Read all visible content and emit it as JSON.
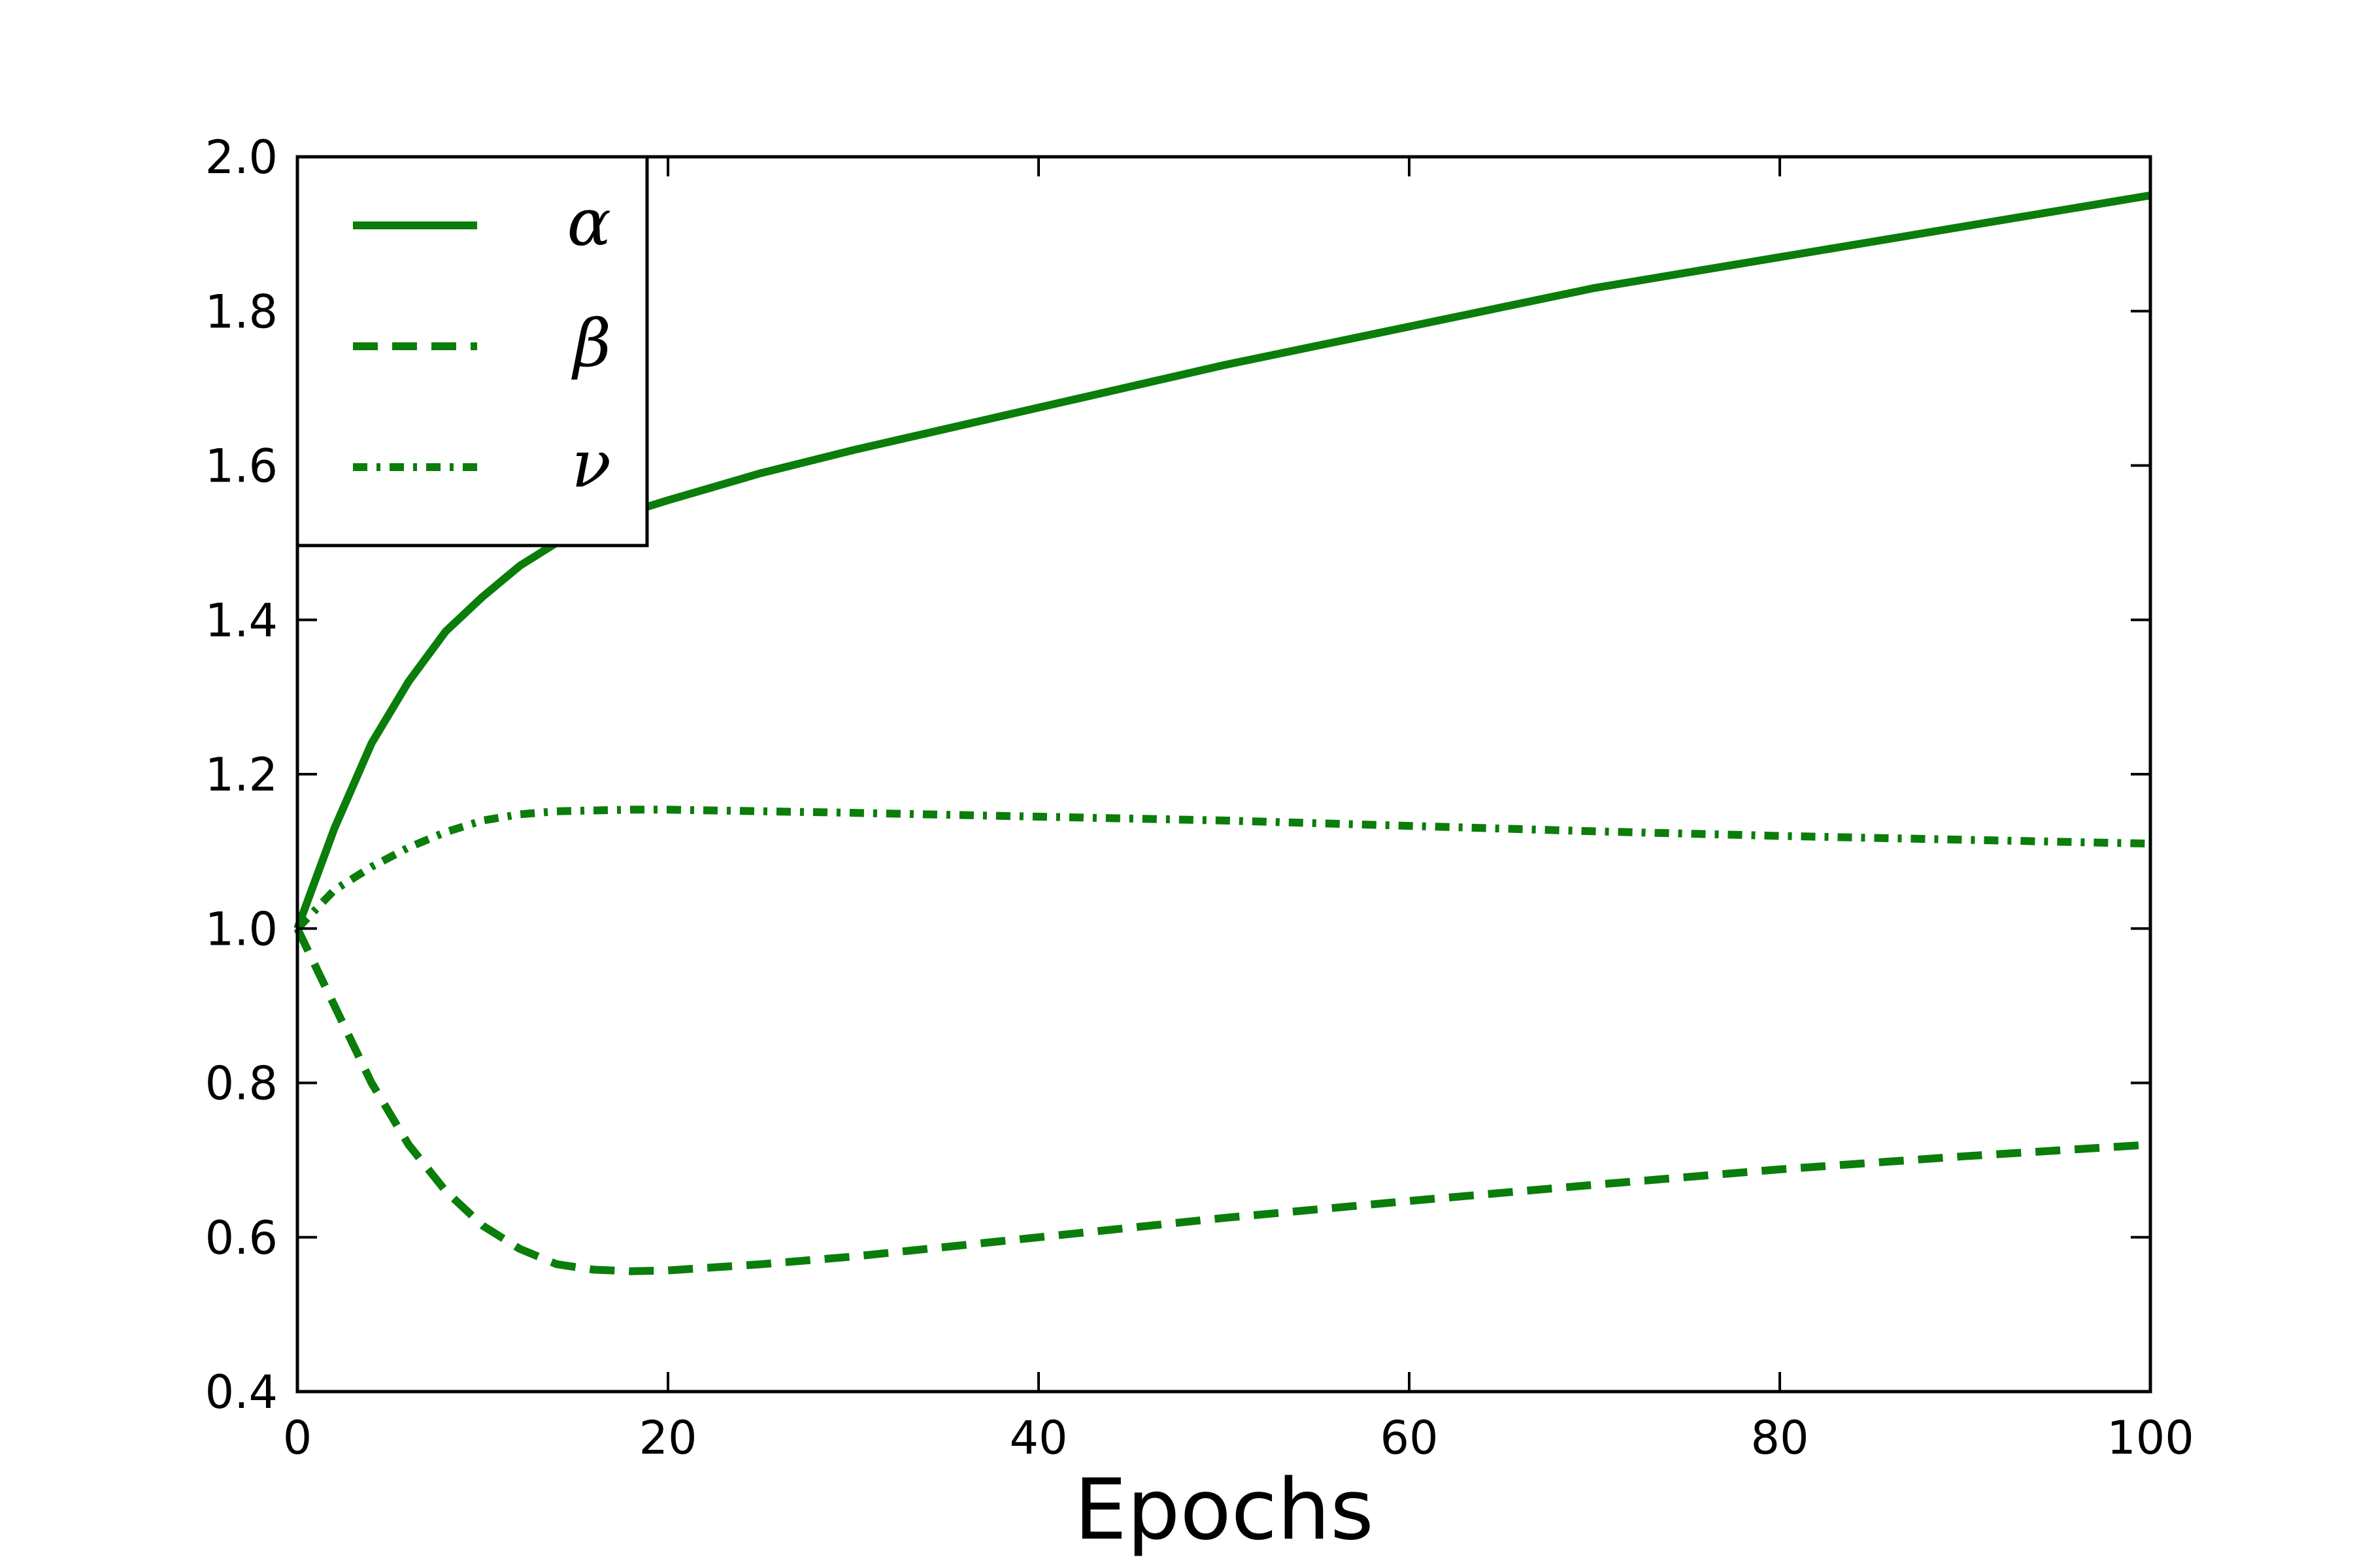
{
  "chart_data": {
    "type": "line",
    "title": "",
    "xlabel": "Epochs",
    "ylabel": "",
    "xlim": [
      0,
      100
    ],
    "ylim": [
      0.4,
      2.0
    ],
    "xticks": [
      0,
      20,
      40,
      60,
      80,
      100
    ],
    "yticks": [
      0.4,
      0.6,
      0.8,
      1.0,
      1.2,
      1.4,
      1.6,
      1.8,
      2.0
    ],
    "xtick_labels": [
      "0",
      "20",
      "40",
      "60",
      "80",
      "100"
    ],
    "ytick_labels": [
      "0.4",
      "0.6",
      "0.8",
      "1.0",
      "1.2",
      "1.4",
      "1.6",
      "1.8",
      "2.0"
    ],
    "grid": false,
    "legend_position": "top-left",
    "color": "#0a7d0a",
    "x": [
      0,
      2,
      4,
      6,
      8,
      10,
      12,
      14,
      16,
      18,
      20,
      25,
      30,
      40,
      50,
      60,
      70,
      80,
      90,
      100
    ],
    "series": [
      {
        "name": "α",
        "style": "solid",
        "values": [
          1.0,
          1.13,
          1.24,
          1.32,
          1.385,
          1.43,
          1.47,
          1.5,
          1.52,
          1.54,
          1.555,
          1.59,
          1.62,
          1.675,
          1.73,
          1.78,
          1.83,
          1.87,
          1.91,
          1.95
        ]
      },
      {
        "name": "β",
        "style": "dashed",
        "values": [
          1.0,
          0.9,
          0.8,
          0.72,
          0.66,
          0.615,
          0.585,
          0.565,
          0.558,
          0.556,
          0.557,
          0.565,
          0.575,
          0.6,
          0.625,
          0.647,
          0.668,
          0.688,
          0.705,
          0.72
        ]
      },
      {
        "name": "ν",
        "style": "dashdot",
        "values": [
          1.0,
          1.05,
          1.08,
          1.105,
          1.125,
          1.14,
          1.148,
          1.152,
          1.153,
          1.154,
          1.154,
          1.152,
          1.15,
          1.145,
          1.14,
          1.133,
          1.126,
          1.12,
          1.115,
          1.11
        ]
      }
    ]
  }
}
